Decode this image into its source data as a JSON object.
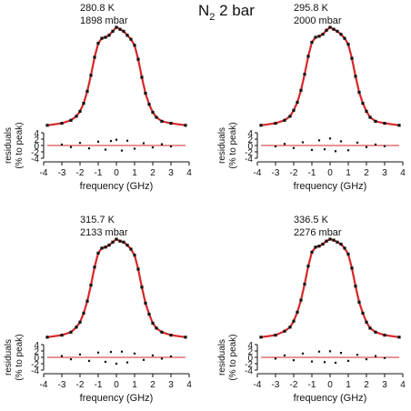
{
  "figure": {
    "title_main": "N",
    "title_sub": "2",
    "title_rest": " 2 bar"
  },
  "chart_data": [
    {
      "type": "scatter",
      "annotation": [
        "280.8 K",
        "1898 mbar"
      ],
      "xlabel": "frequency (GHz)",
      "xlim": [
        -4,
        4
      ],
      "x_ticks": [
        "-4",
        "-3",
        "-2",
        "-1",
        "0",
        "1",
        "2",
        "3",
        "4"
      ],
      "residuals_ylabel": [
        "residuals",
        "(% to peak)"
      ],
      "residuals_ylim": [
        -4,
        4
      ],
      "residuals_ticks": [
        "4",
        "2",
        "0",
        "-2",
        "-4"
      ],
      "series": [
        {
          "role": "measured",
          "color": "#111111",
          "x": [
            -3.8,
            -3.0,
            -2.5,
            -2.2,
            -2.0,
            -1.8,
            -1.6,
            -1.4,
            -1.2,
            -1.0,
            -0.8,
            -0.6,
            -0.4,
            -0.2,
            0,
            0.2,
            0.4,
            0.6,
            0.8,
            1.0,
            1.2,
            1.4,
            1.6,
            1.8,
            2.0,
            2.2,
            2.5,
            3.0,
            3.8
          ],
          "y": [
            0.02,
            0.04,
            0.07,
            0.11,
            0.16,
            0.24,
            0.36,
            0.52,
            0.7,
            0.84,
            0.89,
            0.9,
            0.92,
            0.96,
            1.0,
            0.98,
            0.96,
            0.92,
            0.88,
            0.82,
            0.68,
            0.5,
            0.34,
            0.23,
            0.15,
            0.1,
            0.06,
            0.04,
            0.02
          ]
        },
        {
          "role": "fit",
          "color": "#d62728"
        }
      ],
      "residuals": [
        {
          "x": -3.0,
          "y": 0.3
        },
        {
          "x": -2.5,
          "y": -0.5
        },
        {
          "x": -2.0,
          "y": 0.8
        },
        {
          "x": -1.5,
          "y": -0.9
        },
        {
          "x": -1.0,
          "y": 1.2
        },
        {
          "x": -0.6,
          "y": -1.3
        },
        {
          "x": -0.3,
          "y": 1.4
        },
        {
          "x": 0.0,
          "y": 1.8
        },
        {
          "x": 0.3,
          "y": -1.6
        },
        {
          "x": 0.6,
          "y": 1.5
        },
        {
          "x": 1.0,
          "y": -1.0
        },
        {
          "x": 1.5,
          "y": 0.7
        },
        {
          "x": 2.0,
          "y": -0.6
        },
        {
          "x": 2.5,
          "y": 0.4
        },
        {
          "x": 3.0,
          "y": -0.3
        }
      ]
    },
    {
      "type": "scatter",
      "annotation": [
        "295.8 K",
        "2000 mbar"
      ],
      "xlabel": "frequency (GHz)",
      "xlim": [
        -4,
        4
      ],
      "x_ticks": [
        "-4",
        "-3",
        "-2",
        "-1",
        "0",
        "1",
        "2",
        "3",
        "4"
      ],
      "residuals_ylabel": [
        "residuals",
        "(% to peak)"
      ],
      "residuals_ylim": [
        -4,
        4
      ],
      "residuals_ticks": [
        "4",
        "2",
        "0",
        "-2",
        "-4"
      ],
      "series": [
        {
          "role": "measured",
          "color": "#111111",
          "x": [
            -3.8,
            -3.0,
            -2.5,
            -2.2,
            -2.0,
            -1.8,
            -1.6,
            -1.4,
            -1.2,
            -1.0,
            -0.8,
            -0.6,
            -0.4,
            -0.2,
            0,
            0.2,
            0.4,
            0.6,
            0.8,
            1.0,
            1.2,
            1.4,
            1.6,
            1.8,
            2.0,
            2.2,
            2.5,
            3.0,
            3.8
          ],
          "y": [
            0.02,
            0.04,
            0.07,
            0.11,
            0.17,
            0.25,
            0.37,
            0.53,
            0.71,
            0.85,
            0.9,
            0.91,
            0.93,
            0.97,
            1.0,
            0.98,
            0.96,
            0.93,
            0.89,
            0.83,
            0.69,
            0.51,
            0.35,
            0.24,
            0.16,
            0.1,
            0.06,
            0.04,
            0.02
          ]
        },
        {
          "role": "fit",
          "color": "#d62728"
        }
      ],
      "residuals": [
        {
          "x": -3.0,
          "y": -0.3
        },
        {
          "x": -2.5,
          "y": 0.5
        },
        {
          "x": -2.0,
          "y": -0.8
        },
        {
          "x": -1.5,
          "y": 1.0
        },
        {
          "x": -1.0,
          "y": -1.4
        },
        {
          "x": -0.6,
          "y": 1.6
        },
        {
          "x": -0.3,
          "y": -1.2
        },
        {
          "x": 0.0,
          "y": 2.2
        },
        {
          "x": 0.3,
          "y": -1.8
        },
        {
          "x": 0.6,
          "y": 1.3
        },
        {
          "x": 1.0,
          "y": -1.5
        },
        {
          "x": 1.5,
          "y": 0.9
        },
        {
          "x": 2.0,
          "y": -0.5
        },
        {
          "x": 2.5,
          "y": 0.3
        },
        {
          "x": 3.0,
          "y": -0.2
        }
      ]
    },
    {
      "type": "scatter",
      "annotation": [
        "315.7 K",
        "2133 mbar"
      ],
      "xlabel": "frequency (GHz)",
      "xlim": [
        -4,
        4
      ],
      "x_ticks": [
        "-4",
        "-3",
        "-2",
        "-1",
        "0",
        "1",
        "2",
        "3",
        "4"
      ],
      "residuals_ylabel": [
        "residuals",
        "(% to peak)"
      ],
      "residuals_ylim": [
        -4,
        4
      ],
      "residuals_ticks": [
        "4",
        "2",
        "0",
        "-2",
        "-4"
      ],
      "series": [
        {
          "role": "measured",
          "color": "#111111",
          "x": [
            -3.8,
            -3.0,
            -2.5,
            -2.2,
            -2.0,
            -1.8,
            -1.6,
            -1.4,
            -1.2,
            -1.0,
            -0.8,
            -0.6,
            -0.4,
            -0.2,
            0,
            0.2,
            0.4,
            0.6,
            0.8,
            1.0,
            1.2,
            1.4,
            1.6,
            1.8,
            2.0,
            2.2,
            2.5,
            3.0,
            3.8
          ],
          "y": [
            0.02,
            0.04,
            0.07,
            0.12,
            0.17,
            0.26,
            0.38,
            0.54,
            0.72,
            0.86,
            0.91,
            0.92,
            0.94,
            0.97,
            1.0,
            0.98,
            0.97,
            0.94,
            0.9,
            0.84,
            0.7,
            0.52,
            0.36,
            0.25,
            0.16,
            0.11,
            0.07,
            0.04,
            0.02
          ]
        },
        {
          "role": "fit",
          "color": "#d62728"
        }
      ],
      "residuals": [
        {
          "x": -3.0,
          "y": 0.4
        },
        {
          "x": -2.5,
          "y": -0.6
        },
        {
          "x": -2.0,
          "y": 0.9
        },
        {
          "x": -1.5,
          "y": -1.1
        },
        {
          "x": -1.0,
          "y": 1.5
        },
        {
          "x": -0.6,
          "y": -1.4
        },
        {
          "x": -0.3,
          "y": 1.7
        },
        {
          "x": 0.0,
          "y": -2.0
        },
        {
          "x": 0.3,
          "y": 1.8
        },
        {
          "x": 0.6,
          "y": -1.6
        },
        {
          "x": 1.0,
          "y": 1.2
        },
        {
          "x": 1.5,
          "y": -0.8
        },
        {
          "x": 2.0,
          "y": 0.6
        },
        {
          "x": 2.5,
          "y": -0.4
        },
        {
          "x": 3.0,
          "y": 0.3
        }
      ]
    },
    {
      "type": "scatter",
      "annotation": [
        "336.5 K",
        "2276 mbar"
      ],
      "xlabel": "frequency (GHz)",
      "xlim": [
        -4,
        4
      ],
      "x_ticks": [
        "-4",
        "-3",
        "-2",
        "-1",
        "0",
        "1",
        "2",
        "3",
        "4"
      ],
      "residuals_ylabel": [
        "residuals",
        "(% to peak)"
      ],
      "residuals_ylim": [
        -4,
        4
      ],
      "residuals_ticks": [
        "4",
        "2",
        "0",
        "-2",
        "-4"
      ],
      "series": [
        {
          "role": "measured",
          "color": "#111111",
          "x": [
            -3.8,
            -3.0,
            -2.5,
            -2.2,
            -2.0,
            -1.8,
            -1.6,
            -1.4,
            -1.2,
            -1.0,
            -0.8,
            -0.6,
            -0.4,
            -0.2,
            0,
            0.2,
            0.4,
            0.6,
            0.8,
            1.0,
            1.2,
            1.4,
            1.6,
            1.8,
            2.0,
            2.2,
            2.5,
            3.0,
            3.8
          ],
          "y": [
            0.02,
            0.04,
            0.08,
            0.12,
            0.18,
            0.27,
            0.39,
            0.55,
            0.73,
            0.87,
            0.92,
            0.93,
            0.95,
            0.98,
            1.0,
            0.99,
            0.97,
            0.95,
            0.91,
            0.85,
            0.71,
            0.53,
            0.37,
            0.26,
            0.17,
            0.11,
            0.07,
            0.04,
            0.02
          ]
        },
        {
          "role": "fit",
          "color": "#d62728"
        }
      ],
      "residuals": [
        {
          "x": -3.0,
          "y": -0.4
        },
        {
          "x": -2.5,
          "y": 0.6
        },
        {
          "x": -2.0,
          "y": -0.9
        },
        {
          "x": -1.5,
          "y": 1.2
        },
        {
          "x": -1.0,
          "y": -1.3
        },
        {
          "x": -0.6,
          "y": 1.8
        },
        {
          "x": -0.3,
          "y": -1.5
        },
        {
          "x": 0.0,
          "y": 1.9
        },
        {
          "x": 0.3,
          "y": -1.7
        },
        {
          "x": 0.6,
          "y": 1.4
        },
        {
          "x": 1.0,
          "y": -1.1
        },
        {
          "x": 1.5,
          "y": 0.8
        },
        {
          "x": 2.0,
          "y": -0.6
        },
        {
          "x": 2.5,
          "y": 0.4
        },
        {
          "x": 3.0,
          "y": -0.2
        }
      ]
    }
  ]
}
